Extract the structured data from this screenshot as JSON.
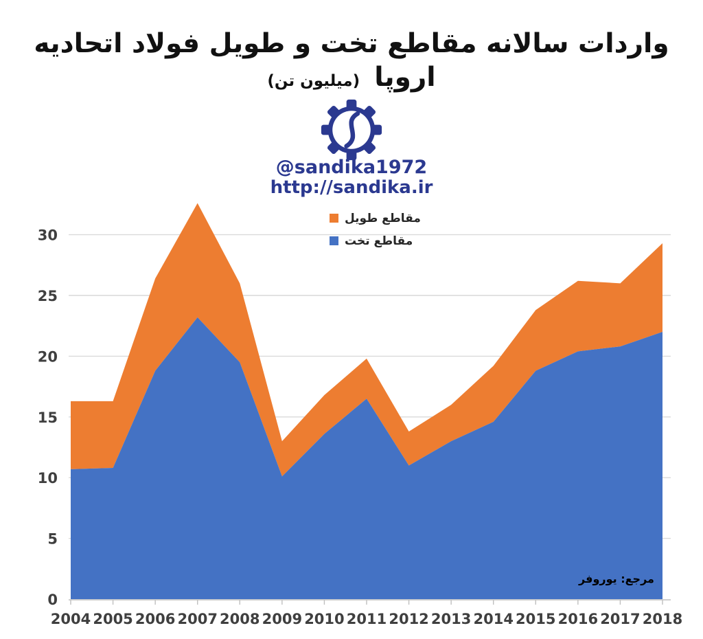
{
  "header": {
    "title": "واردات سالانه مقاطع تخت و طویل فولاد اتحادیه اروپا",
    "title_unit": "(میلیون تن)",
    "handle": "@sandika1972",
    "website": "http://sandika.ir"
  },
  "source_note": "مرجع: یوروفر",
  "colors": {
    "flat_blue": "#4472C4",
    "long_orange": "#ED7D31",
    "brand_navy": "#2B3990",
    "axis_text": "#3F3F3F",
    "gridline": "#D9D9D9",
    "axis_line": "#BFBFBF"
  },
  "chart_data": {
    "type": "area",
    "stacked": true,
    "title": "واردات سالانه مقاطع تخت و طویل فولاد اتحادیه اروپا (میلیون تن)",
    "source": "مرجع: یوروفر",
    "categories": [
      "2004",
      "2005",
      "2006",
      "2007",
      "2008",
      "2009",
      "2010",
      "2011",
      "2012",
      "2013",
      "2014",
      "2015",
      "2016",
      "2017",
      "2018"
    ],
    "series": [
      {
        "name": "مقاطع تخت",
        "color": "#4472C4",
        "values": [
          10.7,
          10.8,
          18.8,
          23.2,
          19.5,
          10.1,
          13.6,
          16.5,
          11.0,
          13.0,
          14.6,
          18.8,
          20.4,
          20.8,
          22.0
        ]
      },
      {
        "name": "مقاطع طویل",
        "color": "#ED7D31",
        "values": [
          5.6,
          5.5,
          7.6,
          9.4,
          6.5,
          2.9,
          3.2,
          3.3,
          2.8,
          3.0,
          4.6,
          5.0,
          5.8,
          5.2,
          7.3
        ]
      }
    ],
    "stacked_totals": [
      16.3,
      16.3,
      26.4,
      32.6,
      26.0,
      13.0,
      16.8,
      19.8,
      13.8,
      16.0,
      19.2,
      23.8,
      26.2,
      26.0,
      29.3
    ],
    "legend": [
      {
        "label": "مقاطع طویل",
        "color": "#ED7D31"
      },
      {
        "label": "مقاطع تخت",
        "color": "#4472C4"
      }
    ],
    "legend_position": "top-center",
    "grid": true,
    "ylim": [
      0,
      30
    ],
    "yticks": [
      0,
      5,
      10,
      15,
      20,
      25,
      30
    ],
    "xlabel": "",
    "ylabel": ""
  }
}
